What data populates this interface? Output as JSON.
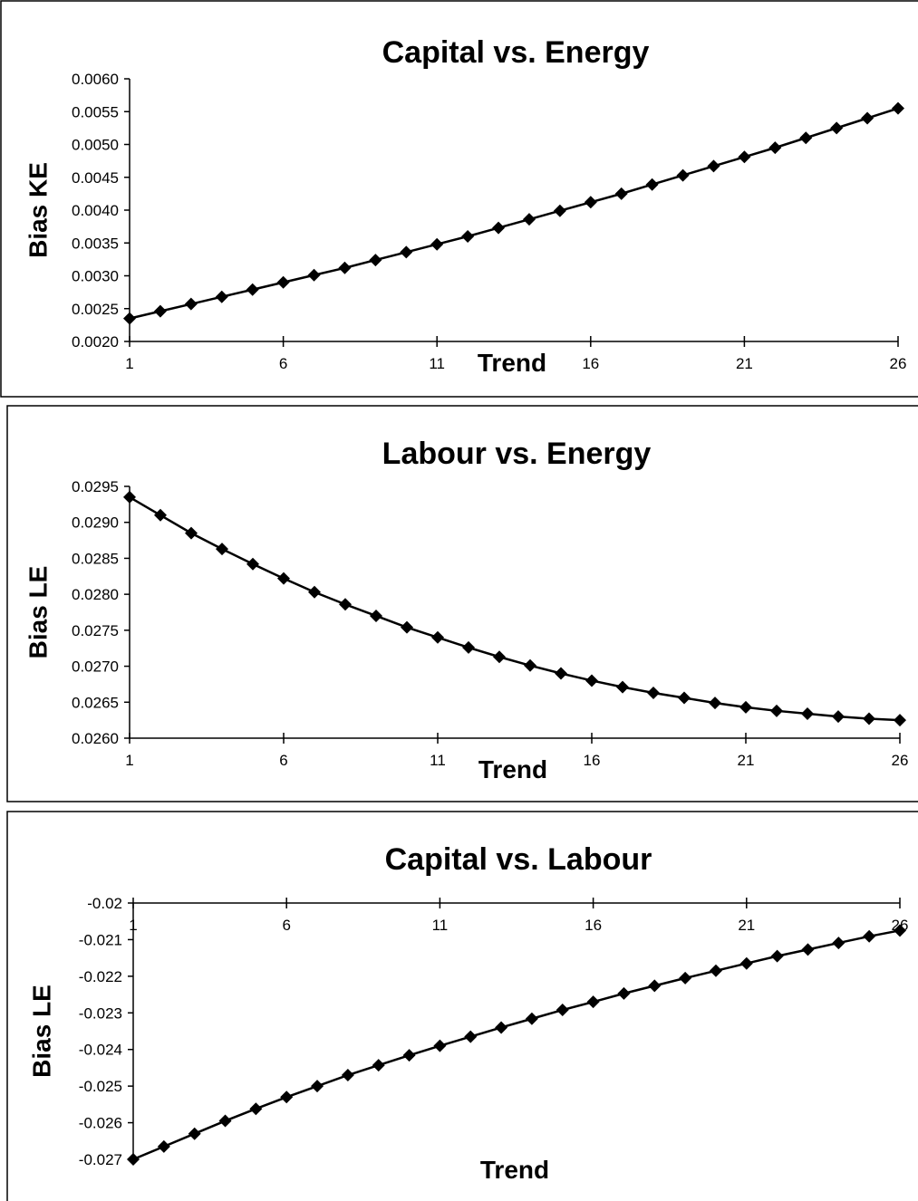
{
  "chart_data": [
    {
      "type": "line",
      "title": "Capital vs. Energy",
      "x_label": "Trend",
      "y_label": "Bias KE",
      "x": [
        1,
        2,
        3,
        4,
        5,
        6,
        7,
        8,
        9,
        10,
        11,
        12,
        13,
        14,
        15,
        16,
        17,
        18,
        19,
        20,
        21,
        22,
        23,
        24,
        25,
        26
      ],
      "series": [
        {
          "color": "#000000",
          "values": [
            0.00235,
            0.00246,
            0.00257,
            0.00268,
            0.00279,
            0.0029,
            0.00301,
            0.00312,
            0.00324,
            0.00336,
            0.00348,
            0.0036,
            0.00373,
            0.00386,
            0.00399,
            0.00412,
            0.00425,
            0.00439,
            0.00453,
            0.00467,
            0.00481,
            0.00495,
            0.0051,
            0.00525,
            0.0054,
            0.00555
          ]
        }
      ],
      "xlim": [
        1,
        26
      ],
      "xticks": [
        1,
        6,
        11,
        16,
        21,
        26
      ],
      "ylim": [
        0.002,
        0.006
      ],
      "yticks": [
        {
          "value": 0.002,
          "label": "0.0020"
        },
        0.0025,
        {
          "value": 0.003,
          "label": "0.0030"
        },
        0.0035,
        {
          "value": 0.004,
          "label": "0.0040"
        },
        0.0045,
        {
          "value": 0.005,
          "label": "0.0050"
        },
        0.0055,
        {
          "value": 0.006,
          "label": "0.0060"
        }
      ]
    },
    {
      "type": "line",
      "title": "Labour vs. Energy",
      "x_label": "Trend",
      "y_label": "Bias LE",
      "x": [
        1,
        2,
        3,
        4,
        5,
        6,
        7,
        8,
        9,
        10,
        11,
        12,
        13,
        14,
        15,
        16,
        17,
        18,
        19,
        20,
        21,
        22,
        23,
        24,
        25,
        26
      ],
      "series": [
        {
          "color": "#000000",
          "values": [
            0.02935,
            0.0291,
            0.02885,
            0.02863,
            0.02842,
            0.02822,
            0.02803,
            0.02786,
            0.0277,
            0.02754,
            0.0274,
            0.02726,
            0.02713,
            0.02701,
            0.0269,
            0.0268,
            0.02671,
            0.02663,
            0.02656,
            0.02649,
            0.02643,
            0.02638,
            0.02634,
            0.0263,
            0.02627,
            0.02625
          ]
        }
      ],
      "xlim": [
        1,
        26
      ],
      "xticks": [
        1,
        6,
        11,
        16,
        21,
        26
      ],
      "ylim": [
        0.026,
        0.0295
      ],
      "yticks": [
        {
          "value": 0.026,
          "label": "0.0260"
        },
        0.0265,
        {
          "value": 0.027,
          "label": "0.0270"
        },
        0.0275,
        {
          "value": 0.028,
          "label": "0.0280"
        },
        0.0285,
        {
          "value": 0.029,
          "label": "0.0290"
        },
        0.0295
      ]
    },
    {
      "type": "line",
      "title": "Capital vs. Labour",
      "x_label": "Trend",
      "y_label": "Bias LE",
      "x": [
        1,
        2,
        3,
        4,
        5,
        6,
        7,
        8,
        9,
        10,
        11,
        12,
        13,
        14,
        15,
        16,
        17,
        18,
        19,
        20,
        21,
        22,
        23,
        24,
        25,
        26
      ],
      "series": [
        {
          "color": "#000000",
          "values": [
            -0.027,
            -0.02665,
            -0.0263,
            -0.02595,
            -0.02562,
            -0.0253,
            -0.025,
            -0.0247,
            -0.02443,
            -0.02416,
            -0.0239,
            -0.02365,
            -0.0234,
            -0.02316,
            -0.02292,
            -0.0227,
            -0.02247,
            -0.02226,
            -0.02205,
            -0.02185,
            -0.02165,
            -0.02145,
            -0.02127,
            -0.02109,
            -0.02091,
            -0.02075
          ]
        }
      ],
      "xlim": [
        1,
        26
      ],
      "xticks": [
        1,
        6,
        11,
        16,
        21,
        26
      ],
      "ylim": [
        -0.027,
        -0.02
      ],
      "yticks": [
        -0.027,
        -0.026,
        -0.025,
        -0.024,
        -0.023,
        -0.022,
        -0.021,
        -0.02
      ]
    }
  ]
}
